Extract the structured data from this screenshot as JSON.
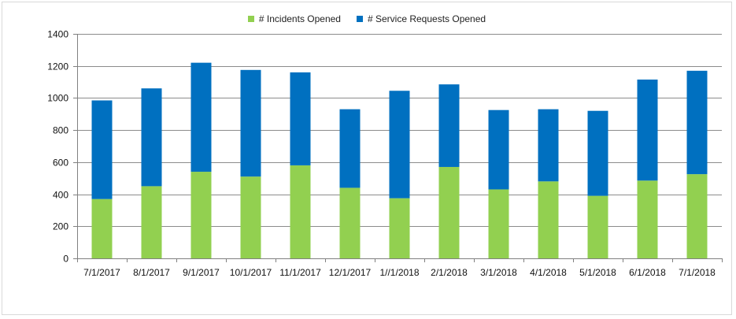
{
  "chart_data": {
    "type": "bar",
    "stacked": true,
    "categories": [
      "7/1/2017",
      "8/1/2017",
      "9/1/2017",
      "10/1/2017",
      "11/1/2017",
      "12/1/2017",
      "1//1/2018",
      "2/1/2018",
      "3/1/2018",
      "4/1/2018",
      "5/1/2018",
      "6/1/2018",
      "7/1/2018"
    ],
    "series": [
      {
        "name": "# Incidents Opened",
        "color": "#92d050",
        "values": [
          370,
          450,
          540,
          510,
          580,
          440,
          375,
          570,
          430,
          480,
          390,
          485,
          525
        ]
      },
      {
        "name": "# Service Requests Opened",
        "color": "#0070c0",
        "values": [
          615,
          610,
          680,
          665,
          580,
          490,
          670,
          515,
          495,
          450,
          530,
          630,
          645
        ]
      }
    ],
    "yticks": [
      0,
      200,
      400,
      600,
      800,
      1000,
      1200,
      1400
    ],
    "ylim": [
      0,
      1400
    ],
    "grid": true,
    "legend_position": "top"
  }
}
